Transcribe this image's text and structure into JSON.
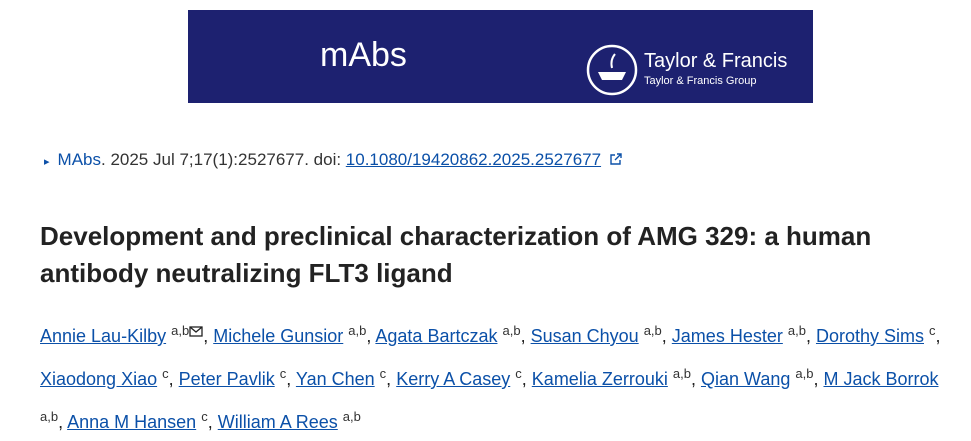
{
  "banner": {
    "journal": "mAbs",
    "publisher": "Taylor & Francis",
    "publisher_group": "Taylor & Francis Group"
  },
  "citation": {
    "journal": "MAbs",
    "details": ". 2025 Jul 7;17(1):2527677. doi: ",
    "doi": "10.1080/19420862.2025.2527677"
  },
  "title": "Development and preclinical characterization of AMG 329: a human antibody neutralizing FLT3 ligand",
  "author_separator": ",",
  "authors": [
    {
      "name": "Annie Lau-Kilby",
      "affiliations": "a,b",
      "corresponding": true
    },
    {
      "name": "Michele Gunsior",
      "affiliations": "a,b"
    },
    {
      "name": "Agata Bartczak",
      "affiliations": "a,b"
    },
    {
      "name": "Susan Chyou",
      "affiliations": "a,b"
    },
    {
      "name": "James Hester",
      "affiliations": "a,b"
    },
    {
      "name": "Dorothy Sims",
      "affiliations": "c"
    },
    {
      "name": "Xiaodong Xiao",
      "affiliations": "c"
    },
    {
      "name": "Peter Pavlik",
      "affiliations": "c"
    },
    {
      "name": "Yan Chen",
      "affiliations": "c"
    },
    {
      "name": "Kerry A Casey",
      "affiliations": "c"
    },
    {
      "name": "Kamelia Zerrouki",
      "affiliations": "a,b"
    },
    {
      "name": "Qian Wang",
      "affiliations": "a,b"
    },
    {
      "name": "M Jack Borrok",
      "affiliations": "a,b"
    },
    {
      "name": "Anna M Hansen",
      "affiliations": "c"
    },
    {
      "name": "William A Rees",
      "affiliations": "a,b"
    }
  ]
}
